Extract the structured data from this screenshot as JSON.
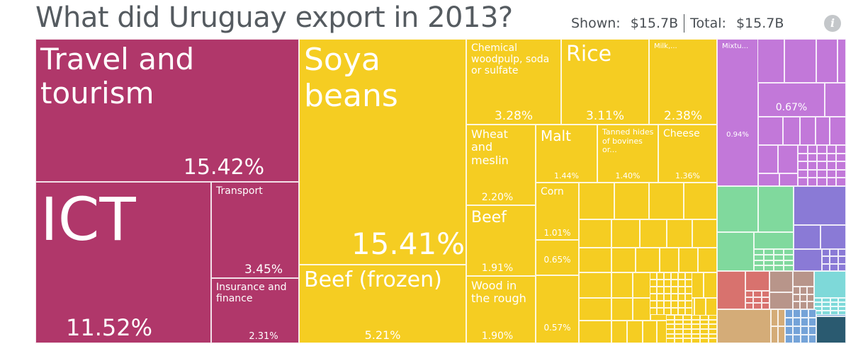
{
  "header": {
    "title": "What did Uruguay export in 2013?",
    "shown_label": "Shown:",
    "shown_value": "$15.7B",
    "total_label": "Total:",
    "total_value": "$15.7B",
    "info_glyph": "i"
  },
  "colors": {
    "services": "#b0376a",
    "vegetable": "#f5cd22",
    "chemicals": "#c278d9",
    "minerals": "#80d99d",
    "machinery": "#8a7ad6",
    "textiles": "#d8726e",
    "wood": "#b8958a",
    "metals": "#7ed9d9",
    "stone": "#d4ac78",
    "electronics": "#74a3d8",
    "other": "#2a5a70"
  },
  "chart_data": {
    "type": "treemap",
    "title": "What did Uruguay export in 2013?",
    "total": "$15.7B",
    "items": [
      {
        "label": "Travel and tourism",
        "pct": "15.42%",
        "value": 15.42,
        "group": "services"
      },
      {
        "label": "ICT",
        "pct": "11.52%",
        "value": 11.52,
        "group": "services"
      },
      {
        "label": "Transport",
        "pct": "3.45%",
        "value": 3.45,
        "group": "services"
      },
      {
        "label": "Insurance and finance",
        "pct": "2.31%",
        "value": 2.31,
        "group": "services"
      },
      {
        "label": "Soya beans",
        "pct": "15.41%",
        "value": 15.41,
        "group": "vegetable"
      },
      {
        "label": "Beef (frozen)",
        "pct": "5.21%",
        "value": 5.21,
        "group": "vegetable"
      },
      {
        "label": "Chemical woodpulp, soda or sulfate",
        "pct": "3.28%",
        "value": 3.28,
        "group": "vegetable"
      },
      {
        "label": "Rice",
        "pct": "3.11%",
        "value": 3.11,
        "group": "vegetable"
      },
      {
        "label": "Milk,...",
        "pct": "2.38%",
        "value": 2.38,
        "group": "vegetable"
      },
      {
        "label": "Wheat and meslin",
        "pct": "2.20%",
        "value": 2.2,
        "group": "vegetable"
      },
      {
        "label": "Malt",
        "pct": "1.44%",
        "value": 1.44,
        "group": "vegetable"
      },
      {
        "label": "Tanned hides of bovines or...",
        "pct": "1.40%",
        "value": 1.4,
        "group": "vegetable"
      },
      {
        "label": "Cheese",
        "pct": "1.36%",
        "value": 1.36,
        "group": "vegetable"
      },
      {
        "label": "Beef",
        "pct": "1.91%",
        "value": 1.91,
        "group": "vegetable"
      },
      {
        "label": "Corn",
        "pct": "1.01%",
        "value": 1.01,
        "group": "vegetable"
      },
      {
        "label": "",
        "pct": "0.65%",
        "value": 0.65,
        "group": "vegetable"
      },
      {
        "label": "Wood in the rough",
        "pct": "1.90%",
        "value": 1.9,
        "group": "vegetable"
      },
      {
        "label": "",
        "pct": "0.57%",
        "value": 0.57,
        "group": "vegetable"
      },
      {
        "label": "Mixtu...",
        "pct": "0.94%",
        "value": 0.94,
        "group": "chemicals"
      },
      {
        "label": "",
        "pct": "0.67%",
        "value": 0.67,
        "group": "chemicals"
      }
    ]
  }
}
